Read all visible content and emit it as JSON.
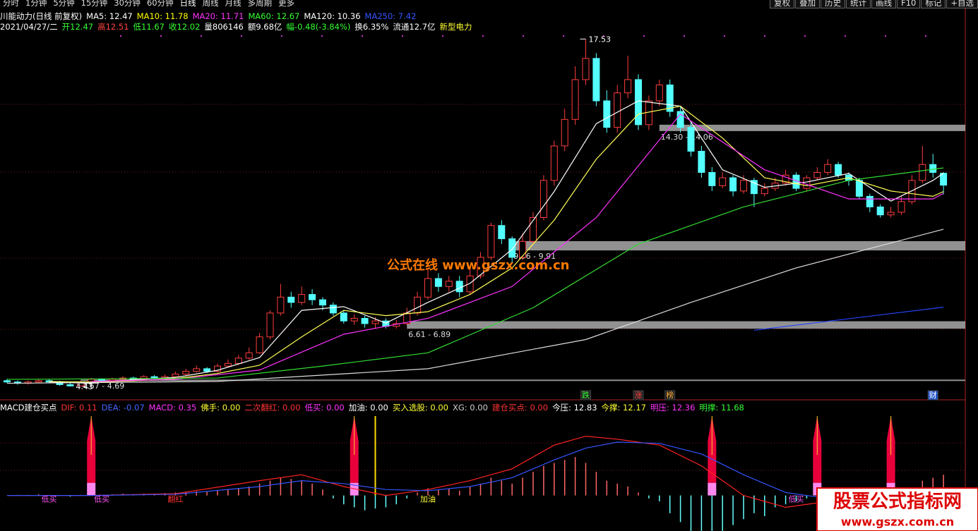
{
  "toolbar": {
    "left": [
      "分时",
      "1分钟",
      "5分钟",
      "15分钟",
      "30分钟",
      "60分钟",
      "日线",
      "周线",
      "月线",
      "多周期",
      "更多"
    ],
    "right": [
      "复权",
      "叠加",
      "历史",
      "统计",
      "画线",
      "F10",
      "标记",
      "+自选"
    ]
  },
  "header": {
    "title": "川能动力(日线 前复权)",
    "ma_legend": [
      {
        "text": "MA5: 12.47",
        "color": "#ffffff"
      },
      {
        "text": "MA10: 11.78",
        "color": "#ffff00"
      },
      {
        "text": "MA20: 11.71",
        "color": "#ff33ff"
      },
      {
        "text": "MA60: 12.67",
        "color": "#33ff33"
      },
      {
        "text": "MA120: 10.36",
        "color": "#ffffff"
      },
      {
        "text": "MA250: 7.42",
        "color": "#3355ff"
      }
    ],
    "quote": [
      {
        "text": "2021/04/27/二",
        "color": "#ffffff"
      },
      {
        "text": "开12.47",
        "color": "#33ff33"
      },
      {
        "text": "高12.51",
        "color": "#ff4444"
      },
      {
        "text": "低11.67",
        "color": "#33ff33"
      },
      {
        "text": "收12.02",
        "color": "#33ff33"
      },
      {
        "text": "量806146",
        "color": "#ffffff"
      },
      {
        "text": "额9.68亿",
        "color": "#ffffff"
      },
      {
        "text": "幅-0.48(-3.84%)",
        "color": "#33ff33"
      },
      {
        "text": "换6.35%",
        "color": "#ffffff"
      },
      {
        "text": "流通12.7亿",
        "color": "#ffffff"
      },
      {
        "text": "新型电力",
        "color": "#ffff33"
      }
    ]
  },
  "watermark": {
    "center": "公式在线  www.gszx.com.cn",
    "corner_title": "股票公式指标网",
    "corner_url": "www.gszx.com.cn"
  },
  "chart_data": [
    {
      "type": "candlestick",
      "ylim": [
        3.98,
        18.47
      ],
      "open": [
        4.65,
        4.6,
        4.55,
        4.6,
        4.65,
        4.6,
        4.5,
        4.45,
        4.6,
        4.7,
        4.65,
        4.7,
        4.75,
        4.7,
        4.8,
        4.75,
        4.8,
        4.9,
        5.0,
        5.1,
        5.0,
        5.2,
        5.3,
        5.5,
        5.7,
        6.3,
        7.2,
        7.8,
        7.6,
        7.9,
        7.7,
        7.5,
        7.2,
        6.9,
        7.0,
        6.8,
        6.9,
        6.7,
        6.8,
        7.2,
        7.8,
        8.5,
        8.2,
        8.4,
        8.0,
        8.6,
        9.3,
        10.5,
        10.0,
        9.3,
        9.9,
        10.8,
        12.2,
        13.5,
        14.5,
        16.0,
        16.8,
        15.2,
        14.2,
        15.5,
        16.0,
        14.3,
        15.2,
        15.8,
        14.8,
        14.2,
        13.3,
        12.5,
        12.0,
        12.3,
        11.8,
        12.2,
        11.7,
        11.9,
        12.1,
        12.4,
        11.9,
        12.3,
        12.5,
        12.8,
        12.4,
        12.2,
        11.6,
        11.2,
        10.9,
        11.0,
        11.4,
        12.2,
        12.8,
        12.47
      ],
      "high": [
        4.72,
        4.66,
        4.66,
        4.72,
        4.7,
        4.64,
        4.56,
        4.65,
        4.76,
        4.74,
        4.76,
        4.82,
        4.8,
        4.86,
        4.86,
        4.88,
        5.0,
        5.1,
        5.22,
        5.16,
        5.3,
        5.45,
        5.62,
        5.9,
        6.45,
        7.3,
        8.3,
        8.0,
        8.2,
        8.1,
        7.8,
        7.6,
        7.3,
        7.15,
        7.1,
        7.05,
        7.0,
        6.95,
        7.4,
        8.0,
        8.9,
        8.7,
        8.6,
        8.6,
        8.9,
        9.5,
        10.6,
        10.7,
        10.1,
        10.2,
        11.0,
        12.4,
        13.7,
        14.9,
        16.5,
        17.53,
        17.0,
        15.6,
        15.8,
        16.9,
        16.2,
        15.4,
        16.0,
        16.0,
        15.0,
        14.4,
        13.5,
        12.7,
        12.5,
        12.4,
        12.4,
        12.3,
        12.1,
        12.3,
        12.6,
        12.5,
        12.4,
        12.7,
        13.0,
        12.9,
        12.5,
        12.3,
        11.7,
        11.3,
        11.2,
        11.6,
        12.4,
        13.5,
        13.2,
        12.51
      ],
      "low": [
        4.55,
        4.5,
        4.5,
        4.56,
        4.55,
        4.46,
        4.43,
        4.44,
        4.56,
        4.6,
        4.62,
        4.66,
        4.64,
        4.66,
        4.7,
        4.72,
        4.76,
        4.86,
        4.96,
        4.94,
        4.96,
        5.14,
        5.25,
        5.44,
        5.66,
        6.2,
        7.1,
        7.4,
        7.5,
        7.5,
        7.3,
        7.1,
        6.8,
        6.75,
        6.65,
        6.61,
        6.62,
        6.62,
        6.75,
        7.1,
        7.7,
        8.0,
        8.0,
        7.8,
        7.9,
        8.5,
        9.2,
        9.8,
        9.1,
        9.2,
        9.8,
        10.7,
        12.0,
        13.3,
        14.3,
        15.8,
        15.0,
        14.0,
        14.0,
        15.3,
        14.1,
        14.1,
        15.0,
        14.6,
        14.0,
        13.1,
        12.3,
        11.8,
        11.9,
        11.6,
        11.7,
        11.2,
        11.6,
        11.8,
        12.0,
        11.8,
        11.8,
        12.2,
        12.4,
        12.3,
        12.0,
        11.5,
        11.0,
        10.8,
        10.8,
        10.9,
        11.3,
        12.1,
        12.3,
        11.67
      ],
      "close": [
        4.6,
        4.55,
        4.6,
        4.65,
        4.6,
        4.5,
        4.45,
        4.6,
        4.7,
        4.65,
        4.7,
        4.75,
        4.7,
        4.8,
        4.75,
        4.8,
        4.9,
        5.0,
        5.1,
        5.0,
        5.2,
        5.3,
        5.5,
        5.7,
        6.3,
        7.2,
        7.8,
        7.6,
        7.9,
        7.7,
        7.5,
        7.2,
        6.9,
        7.0,
        6.8,
        6.9,
        6.7,
        6.8,
        7.2,
        7.8,
        8.5,
        8.2,
        8.4,
        8.0,
        8.6,
        9.3,
        10.5,
        10.0,
        9.3,
        9.9,
        10.8,
        12.2,
        13.5,
        14.5,
        16.0,
        16.8,
        15.2,
        14.2,
        15.5,
        16.0,
        14.3,
        15.2,
        15.8,
        14.8,
        14.2,
        13.3,
        12.5,
        12.0,
        12.3,
        11.8,
        12.2,
        11.7,
        11.9,
        12.1,
        12.4,
        11.9,
        12.3,
        12.5,
        12.8,
        12.4,
        12.2,
        11.6,
        11.2,
        10.9,
        11.0,
        11.4,
        12.2,
        12.8,
        12.5,
        12.02
      ],
      "up_color": "#ff3c3c",
      "down_color": "#54ffff",
      "series": [
        {
          "name": "MA5",
          "color": "#ffffff",
          "x": [
            4,
            8,
            12,
            16,
            20,
            24,
            28,
            32,
            36,
            40,
            44,
            48,
            52,
            56,
            60,
            64,
            68,
            72,
            76,
            80,
            84,
            88,
            89
          ],
          "values": [
            4.6,
            4.55,
            4.69,
            4.77,
            5.04,
            5.52,
            7.3,
            7.44,
            6.82,
            7.6,
            8.32,
            9.6,
            11.78,
            14.34,
            15.2,
            15.0,
            12.6,
            11.94,
            12.14,
            12.46,
            11.42,
            12.2,
            12.47
          ]
        },
        {
          "name": "MA10",
          "color": "#ffff55",
          "x": [
            4,
            8,
            12,
            16,
            20,
            24,
            28,
            32,
            36,
            40,
            44,
            48,
            52,
            56,
            60,
            64,
            68,
            72,
            76,
            80,
            84,
            88,
            89
          ],
          "values": [
            4.62,
            4.6,
            4.64,
            4.73,
            4.92,
            5.23,
            6.3,
            7.3,
            7.1,
            7.25,
            7.9,
            8.9,
            10.7,
            13.0,
            14.7,
            15.0,
            13.8,
            12.3,
            12.0,
            12.3,
            11.8,
            11.6,
            11.78
          ]
        },
        {
          "name": "MA20",
          "color": "#ff33ff",
          "x": [
            8,
            16,
            24,
            32,
            40,
            48,
            56,
            64,
            72,
            80,
            88,
            89
          ],
          "values": [
            4.62,
            4.7,
            5.05,
            6.4,
            7.0,
            8.2,
            10.8,
            14.7,
            12.6,
            11.5,
            11.5,
            11.71
          ]
        },
        {
          "name": "MA60",
          "color": "#33dd33",
          "x": [
            0,
            10,
            20,
            30,
            40,
            50,
            60,
            70,
            80,
            89
          ],
          "values": [
            4.7,
            4.72,
            4.75,
            5.2,
            5.7,
            7.4,
            9.8,
            11.2,
            12.2,
            12.67
          ]
        },
        {
          "name": "MA120",
          "color": "#dddddd",
          "x": [
            0,
            20,
            40,
            55,
            65,
            75,
            89
          ],
          "values": [
            4.55,
            4.62,
            5.1,
            6.2,
            7.6,
            8.9,
            10.36
          ]
        },
        {
          "name": "MA250",
          "color": "#2244ff",
          "x": [
            71,
            89
          ],
          "values": [
            6.55,
            7.42
          ]
        }
      ],
      "zones": [
        {
          "label": "14.30 - 14.06",
          "high": 14.3,
          "low": 14.06,
          "from": 62
        },
        {
          "label": "9.56 - 9.91",
          "high": 9.91,
          "low": 9.56,
          "from": 48
        },
        {
          "label": "6.61 - 6.89",
          "high": 6.89,
          "low": 6.61,
          "from": 38
        },
        {
          "label": "4.67 - 4.69",
          "high": 4.69,
          "low": 4.67,
          "from": 7
        }
      ],
      "events": [
        {
          "text": "跌",
          "x": 55,
          "color": "#33ff33"
        },
        {
          "text": "涨",
          "x": 60,
          "color": "#ff4444"
        },
        {
          "text": "榜",
          "x": 63,
          "color": "#ffaa33"
        },
        {
          "text": "财",
          "x": 88,
          "color": "#ffffff"
        }
      ]
    },
    {
      "type": "macd",
      "title": "MACD建仓买点",
      "ylim": [
        -0.6,
        1.4
      ],
      "legend": [
        {
          "text": "DIF: 0.11",
          "color": "#ff3333"
        },
        {
          "text": "DEA: -0.07",
          "color": "#4466ff"
        },
        {
          "text": "MACD: 0.35",
          "color": "#ff33ff"
        },
        {
          "text": "佛手: 0.00",
          "color": "#ffff33"
        },
        {
          "text": "二次翻红: 0.00",
          "color": "#ff3333"
        },
        {
          "text": "低买: 0.00",
          "color": "#ff33ff"
        },
        {
          "text": "加油: 0.00",
          "color": "#ffffff"
        },
        {
          "text": "买入选股: 0.00",
          "color": "#ffff33"
        },
        {
          "text": "XG: 0.00",
          "color": "#cccccc"
        },
        {
          "text": "建仓买点: 0.00",
          "color": "#ff3333"
        },
        {
          "text": "今压: 12.83",
          "color": "#ffffff"
        },
        {
          "text": "今撑: 12.17",
          "color": "#ffff33"
        },
        {
          "text": "明压: 12.36",
          "color": "#ff33ff"
        },
        {
          "text": "明撑: 11.68",
          "color": "#33ff33"
        }
      ],
      "histogram": [
        0,
        0.01,
        0.01,
        0.02,
        0.01,
        -0.01,
        -0.02,
        0.01,
        0.02,
        0.01,
        0.02,
        0.03,
        0.02,
        0.03,
        0.03,
        0.04,
        0.05,
        0.06,
        0.07,
        0.06,
        0.08,
        0.1,
        0.12,
        0.15,
        0.2,
        0.25,
        0.3,
        0.28,
        0.26,
        0.2,
        0.1,
        -0.05,
        -0.15,
        -0.2,
        -0.25,
        -0.22,
        -0.2,
        -0.15,
        -0.05,
        0.05,
        0.12,
        0.1,
        0.12,
        0.08,
        0.15,
        0.2,
        0.3,
        0.25,
        0.2,
        0.3,
        0.4,
        0.5,
        0.55,
        0.6,
        0.65,
        0.55,
        0.4,
        0.25,
        0.2,
        0.15,
        0.05,
        -0.05,
        -0.1,
        -0.3,
        -0.45,
        -0.6,
        -0.75,
        -0.85,
        -0.6,
        -0.5,
        -0.4,
        -0.3,
        -0.35,
        -0.2,
        -0.15,
        -0.1,
        -0.05,
        0.02,
        0.05,
        -0.03,
        -0.05,
        -0.1,
        -0.12,
        -0.1,
        -0.05,
        0.05,
        0.1,
        0.25,
        0.3,
        0.35
      ],
      "pos_color": "#ff6666",
      "neg_color": "#66ffff",
      "series": [
        {
          "name": "DIF",
          "color": "#ff2222",
          "x": [
            0,
            8,
            16,
            24,
            28,
            32,
            36,
            40,
            44,
            48,
            52,
            55,
            58,
            62,
            66,
            70,
            74,
            78,
            82,
            86,
            89
          ],
          "values": [
            0,
            0,
            0.03,
            0.25,
            0.35,
            0.15,
            0,
            0.1,
            0.25,
            0.45,
            0.85,
            1.0,
            0.95,
            0.85,
            0.5,
            0,
            -0.2,
            -0.1,
            -0.1,
            0,
            0.11
          ]
        },
        {
          "name": "DEA",
          "color": "#3355ff",
          "x": [
            0,
            8,
            16,
            24,
            28,
            32,
            36,
            40,
            44,
            48,
            52,
            55,
            58,
            62,
            66,
            70,
            74,
            78,
            82,
            86,
            89
          ],
          "values": [
            0,
            0,
            0.02,
            0.15,
            0.25,
            0.2,
            0.1,
            0.08,
            0.15,
            0.3,
            0.6,
            0.8,
            0.9,
            0.88,
            0.7,
            0.35,
            0.05,
            -0.05,
            -0.1,
            -0.05,
            -0.07
          ]
        }
      ],
      "buy_signals": [
        8,
        33,
        67,
        77,
        84
      ],
      "oil_signals": [
        35
      ],
      "signal_labels": [
        {
          "text": "低买",
          "x": 4,
          "color": "#ff55ff"
        },
        {
          "text": "低买",
          "x": 9,
          "color": "#ff55ff"
        },
        {
          "text": "翻红",
          "x": 16,
          "color": "#ff3333"
        },
        {
          "text": "加油",
          "x": 40,
          "color": "#ffff33"
        },
        {
          "text": "低买",
          "x": 75,
          "color": "#ff55ff"
        }
      ]
    }
  ]
}
